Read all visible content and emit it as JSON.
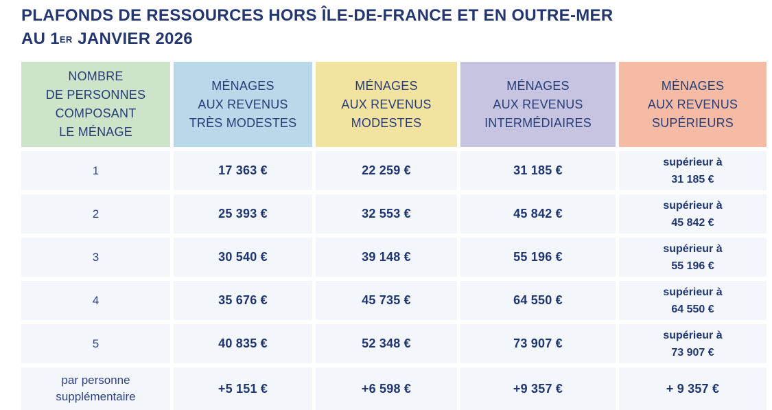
{
  "title": {
    "line1": "PLAFONDS DE RESSOURCES HORS ÎLE-DE-FRANCE ET EN OUTRE-MER",
    "line2_pre": "AU 1",
    "line2_sup": "ER",
    "line2_post": "JANVIER 2026"
  },
  "chart_data": {
    "type": "table",
    "title": "PLAFONDS DE RESSOURCES HORS ÎLE-DE-FRANCE ET EN OUTRE-MER AU 1ER JANVIER 2026",
    "columns": [
      {
        "id": "nombre-personnes",
        "label": "NOMBRE\nDE PERSONNES\nCOMPOSANT\nLE MÉNAGE",
        "bg": "#cee4ca"
      },
      {
        "id": "tres-modestes",
        "label": "MÉNAGES\nAUX REVENUS\nTRÈS MODESTES",
        "bg": "#b9d8ea"
      },
      {
        "id": "modestes",
        "label": "MÉNAGES\nAUX REVENUS\nMODESTES",
        "bg": "#f3e3a1"
      },
      {
        "id": "intermediaires",
        "label": "MÉNAGES\nAUX REVENUS\nINTERMÉDIAIRES",
        "bg": "#c6c4e1"
      },
      {
        "id": "superieurs",
        "label": "MÉNAGES\nAUX REVENUS\nSUPÉRIEURS",
        "bg": "#f6bba4"
      }
    ],
    "rows": [
      {
        "label": "1",
        "cells": [
          "17 363 €",
          "22 259 €",
          "31 185 €",
          "supérieur à\n31 185 €"
        ]
      },
      {
        "label": "2",
        "cells": [
          "25 393 €",
          "32 553 €",
          "45 842 €",
          "supérieur à\n45 842 €"
        ]
      },
      {
        "label": "3",
        "cells": [
          "30 540 €",
          "39 148 €",
          "55 196 €",
          "supérieur à\n55 196 €"
        ]
      },
      {
        "label": "4",
        "cells": [
          "35 676 €",
          "45 735 €",
          "64 550 €",
          "supérieur à\n64 550 €"
        ]
      },
      {
        "label": "5",
        "cells": [
          "40 835 €",
          "52 348 €",
          "73 907 €",
          "supérieur à\n73 907 €"
        ]
      },
      {
        "label": "par personne\nsupplémentaire",
        "cells": [
          "+5 151 €",
          "+6 598 €",
          "+9 357 €",
          "+ 9 357 €"
        ]
      }
    ],
    "values_eur": {
      "tres_modestes": [
        17363,
        25393,
        30540,
        35676,
        40835
      ],
      "modestes": [
        22259,
        32553,
        39148,
        45735,
        52348
      ],
      "intermediaires": [
        31185,
        45842,
        55196,
        64550,
        73907
      ],
      "superieurs_seuil": [
        31185,
        45842,
        55196,
        64550,
        73907
      ],
      "par_personne_supplementaire": {
        "tres_modestes": 5151,
        "modestes": 6598,
        "intermediaires": 9357,
        "superieurs": 9357
      }
    }
  },
  "colors": {
    "title_text": "#24366f",
    "header_text": "#273c77",
    "value_text": "#1f356f",
    "row_label_text": "#2e4285",
    "cell_background": "#f3f6fa",
    "header_green": "#cee4ca",
    "header_blue": "#b9d8ea",
    "header_yellow": "#f3e3a1",
    "header_purple": "#c6c4e1",
    "header_salmon": "#f6bba4"
  }
}
